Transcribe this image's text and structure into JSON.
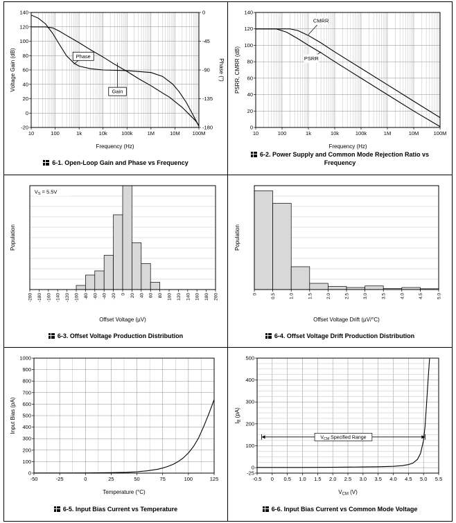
{
  "colors": {
    "curve": "#000000",
    "bar_fill": "#d8d8d8",
    "grid_major": "#8c8c8c",
    "grid_minor": "#c2c2c2",
    "border": "#000000"
  },
  "chart_data": [
    {
      "id": "6-1",
      "icon": "figure-icon",
      "caption": "6-1. Open-Loop Gain and Phase vs Frequency",
      "type": "line",
      "xscale": "log",
      "xlabel": "Frequency (Hz)",
      "ylabel": "Voltage Gain (dB)",
      "y2label": "Phase (°)",
      "xlim": [
        10,
        100000000
      ],
      "ylim": [
        -20,
        140
      ],
      "y2lim": [
        -180,
        0
      ],
      "ygrid": 20,
      "margins": {
        "l": 34,
        "r": 36,
        "t": 7,
        "b": 33
      },
      "xticks": [
        [
          10,
          "10"
        ],
        [
          100,
          "100"
        ],
        [
          1000,
          "1k"
        ],
        [
          10000,
          "10k"
        ],
        [
          100000,
          "100k"
        ],
        [
          1000000,
          "1M"
        ],
        [
          10000000,
          "10M"
        ],
        [
          100000000,
          "100M"
        ]
      ],
      "yticks": [
        [
          140,
          "140"
        ],
        [
          120,
          "120"
        ],
        [
          100,
          "100"
        ],
        [
          80,
          "80"
        ],
        [
          60,
          "60"
        ],
        [
          40,
          "40"
        ],
        [
          20,
          "20"
        ],
        [
          0,
          "0"
        ],
        [
          -20,
          "-20"
        ]
      ],
      "y2ticks": [
        [
          0,
          "0"
        ],
        [
          -45,
          "-45"
        ],
        [
          -90,
          "-90"
        ],
        [
          -135,
          "-135"
        ],
        [
          -180,
          "-180"
        ]
      ],
      "series": [
        {
          "name": "Gain",
          "points": [
            [
              10,
              120
            ],
            [
              40,
              120
            ],
            [
              80,
              118.5
            ],
            [
              150,
              114
            ],
            [
              300,
              108
            ],
            [
              1000,
              98
            ],
            [
              3000,
              88
            ],
            [
              10000,
              78
            ],
            [
              30000,
              68
            ],
            [
              100000,
              58
            ],
            [
              300000,
              48
            ],
            [
              1000000,
              38
            ],
            [
              3000000,
              28
            ],
            [
              6000000,
              22
            ],
            [
              10000000,
              16
            ],
            [
              20000000,
              8
            ],
            [
              40000000,
              -2
            ],
            [
              70000000,
              -10
            ],
            [
              100000000,
              -17
            ]
          ]
        },
        {
          "name": "Phase",
          "axis": "y2",
          "points": [
            [
              10,
              -4
            ],
            [
              20,
              -9
            ],
            [
              40,
              -18
            ],
            [
              80,
              -33
            ],
            [
              150,
              -50
            ],
            [
              300,
              -68
            ],
            [
              600,
              -79
            ],
            [
              1000,
              -84
            ],
            [
              3000,
              -88
            ],
            [
              10000,
              -90
            ],
            [
              100000,
              -91
            ],
            [
              1000000,
              -94
            ],
            [
              3000000,
              -100
            ],
            [
              8000000,
              -112
            ],
            [
              15000000,
              -124
            ],
            [
              30000000,
              -141
            ],
            [
              60000000,
              -162
            ],
            [
              100000000,
              -178
            ]
          ]
        }
      ],
      "annotations": [
        {
          "type": "label",
          "text": "Phase",
          "x": 1500,
          "y": 79,
          "boxed": true,
          "leader": [
            600,
            68
          ]
        },
        {
          "type": "label",
          "text": "Gain",
          "x": 40000,
          "y": 30,
          "boxed": true,
          "leader": [
            40000,
            70
          ]
        }
      ]
    },
    {
      "id": "6-2",
      "icon": "figure-icon",
      "caption": "6-2. Power Supply and Common Mode Rejection Ratio vs Frequency",
      "type": "line",
      "xscale": "log",
      "xlabel": "Frequency (Hz)",
      "ylabel": "PSRR, CMRR (dB)",
      "xlim": [
        10,
        100000000
      ],
      "ylim": [
        0,
        140
      ],
      "ygrid": 20,
      "margins": {
        "l": 34,
        "r": 12,
        "t": 7,
        "b": 33
      },
      "xticks": [
        [
          10,
          "10"
        ],
        [
          100,
          "100"
        ],
        [
          1000,
          "1k"
        ],
        [
          10000,
          "10k"
        ],
        [
          100000,
          "100k"
        ],
        [
          1000000,
          "1M"
        ],
        [
          10000000,
          "10M"
        ],
        [
          100000000,
          "100M"
        ]
      ],
      "yticks": [
        [
          140,
          "140"
        ],
        [
          120,
          "120"
        ],
        [
          100,
          "100"
        ],
        [
          80,
          "80"
        ],
        [
          60,
          "60"
        ],
        [
          40,
          "40"
        ],
        [
          20,
          "20"
        ],
        [
          0,
          "0"
        ]
      ],
      "series": [
        {
          "name": "CMRR",
          "points": [
            [
              10,
              120
            ],
            [
              200,
              120
            ],
            [
              400,
              118
            ],
            [
              1000,
              112
            ],
            [
              3000,
              103
            ],
            [
              10000,
              92
            ],
            [
              100000,
              72
            ],
            [
              1000000,
              52
            ],
            [
              10000000,
              32
            ],
            [
              100000000,
              12
            ]
          ]
        },
        {
          "name": "PSRR",
          "points": [
            [
              10,
              120
            ],
            [
              60,
              120
            ],
            [
              150,
              116
            ],
            [
              400,
              108
            ],
            [
              1000,
              100
            ],
            [
              3000,
              91
            ],
            [
              10000,
              80
            ],
            [
              100000,
              60
            ],
            [
              1000000,
              40
            ],
            [
              10000000,
              20
            ],
            [
              100000000,
              1
            ]
          ]
        }
      ],
      "annotations": [
        {
          "type": "label",
          "text": "CMRR",
          "x": 3000,
          "y": 130,
          "leader": [
            1000,
            113
          ]
        },
        {
          "type": "label",
          "text": "PSRR",
          "x": 1300,
          "y": 84,
          "leader": [
            3000,
            92
          ]
        }
      ]
    },
    {
      "id": "6-3",
      "icon": "figure-icon",
      "caption": "6-3. Offset Voltage Production Distribution",
      "type": "bar",
      "xlabel": "Offset Voltage (µV)",
      "ylabel": "Population",
      "y_units": "relative",
      "xlim": [
        -200,
        200
      ],
      "ylim": [
        0,
        1
      ],
      "bin_width": 20,
      "ygrid_div": 10,
      "xtick_rotate": true,
      "margins": {
        "l": 32,
        "r": 12,
        "t": 7,
        "b": 49
      },
      "xticks": [
        [
          -200,
          "-200"
        ],
        [
          -180,
          "-180"
        ],
        [
          -160,
          "-160"
        ],
        [
          -140,
          "-140"
        ],
        [
          -120,
          "-120"
        ],
        [
          -100,
          "-100"
        ],
        [
          -80,
          "-80"
        ],
        [
          -60,
          "-60"
        ],
        [
          -40,
          "-40"
        ],
        [
          -20,
          "-20"
        ],
        [
          0,
          "0"
        ],
        [
          20,
          "20"
        ],
        [
          40,
          "40"
        ],
        [
          60,
          "60"
        ],
        [
          80,
          "80"
        ],
        [
          100,
          "100"
        ],
        [
          120,
          "120"
        ],
        [
          140,
          "140"
        ],
        [
          160,
          "160"
        ],
        [
          180,
          "180"
        ],
        [
          200,
          "200"
        ]
      ],
      "bars": [
        [
          -100,
          0.04
        ],
        [
          -80,
          0.14
        ],
        [
          -60,
          0.18
        ],
        [
          -40,
          0.33
        ],
        [
          -20,
          0.72
        ],
        [
          0,
          1.0
        ],
        [
          20,
          0.45
        ],
        [
          40,
          0.25
        ],
        [
          60,
          0.07
        ]
      ],
      "annotations": [
        {
          "type": "label",
          "text": "V_{S} = 5.5V",
          "x": -190,
          "y": 0.94,
          "anchor": "start"
        }
      ]
    },
    {
      "id": "6-4",
      "icon": "figure-icon",
      "caption": "6-4. Offset Voltage Drift Production Distribution",
      "type": "bar",
      "xlabel": "Offset Voltage Drift (µV/°C)",
      "ylabel": "Population",
      "y_units": "relative",
      "xlim": [
        0,
        5
      ],
      "ylim": [
        0,
        1
      ],
      "bin_width": 0.5,
      "ygrid_div": 10,
      "xtick_rotate": true,
      "margins": {
        "l": 32,
        "r": 14,
        "t": 7,
        "b": 49
      },
      "xticks": [
        [
          0,
          "0"
        ],
        [
          0.5,
          "0.5"
        ],
        [
          1,
          "1.0"
        ],
        [
          1.5,
          "1.5"
        ],
        [
          2,
          "2.0"
        ],
        [
          2.5,
          "2.5"
        ],
        [
          3,
          "3.0"
        ],
        [
          3.5,
          "3.5"
        ],
        [
          4,
          "4.0"
        ],
        [
          4.5,
          "4.5"
        ],
        [
          5,
          "5.0"
        ]
      ],
      "bars": [
        [
          0,
          0.95
        ],
        [
          0.5,
          0.83
        ],
        [
          1,
          0.22
        ],
        [
          1.5,
          0.06
        ],
        [
          2,
          0.03
        ],
        [
          2.5,
          0.02
        ],
        [
          3,
          0.035
        ],
        [
          3.5,
          0.01
        ],
        [
          4,
          0.02
        ],
        [
          4.5,
          0.008
        ]
      ]
    },
    {
      "id": "6-5",
      "icon": "figure-icon",
      "caption": "6-5. Input Bias Current vs Temperature",
      "type": "line",
      "xlabel": "Temperature (°C)",
      "ylabel": "Input Bias (pA)",
      "xlim": [
        -50,
        125
      ],
      "ylim": [
        0,
        1000
      ],
      "xgrid": 25,
      "xgrid_minor": 12.5,
      "ygrid": 100,
      "margins": {
        "l": 38,
        "r": 14,
        "t": 7,
        "b": 33
      },
      "xticks": [
        [
          -50,
          "-50"
        ],
        [
          -25,
          "-25"
        ],
        [
          0,
          "0"
        ],
        [
          25,
          "25"
        ],
        [
          50,
          "50"
        ],
        [
          75,
          "75"
        ],
        [
          100,
          "100"
        ],
        [
          125,
          "125"
        ]
      ],
      "yticks": [
        [
          1000,
          "1000"
        ],
        [
          900,
          "900"
        ],
        [
          800,
          "800"
        ],
        [
          700,
          "700"
        ],
        [
          600,
          "600"
        ],
        [
          500,
          "500"
        ],
        [
          400,
          "400"
        ],
        [
          300,
          "300"
        ],
        [
          200,
          "200"
        ],
        [
          100,
          "100"
        ],
        [
          0,
          "0"
        ]
      ],
      "series": [
        {
          "name": "Input Bias",
          "points": [
            [
              -50,
              1
            ],
            [
              -25,
              1
            ],
            [
              0,
              2
            ],
            [
              25,
              4
            ],
            [
              40,
              7
            ],
            [
              50,
              12
            ],
            [
              60,
              20
            ],
            [
              70,
              34
            ],
            [
              75,
              44
            ],
            [
              80,
              58
            ],
            [
              85,
              76
            ],
            [
              90,
              100
            ],
            [
              95,
              132
            ],
            [
              100,
              175
            ],
            [
              105,
              232
            ],
            [
              110,
              308
            ],
            [
              115,
              408
            ],
            [
              120,
              520
            ],
            [
              125,
              640
            ]
          ]
        }
      ]
    },
    {
      "id": "6-6",
      "icon": "figure-icon",
      "caption": "6-6. Input Bias Current vs Common Mode Voltage",
      "type": "line",
      "xlabel": "V_{CM} (V)",
      "ylabel": "I_{B} (pA)",
      "xlim": [
        -0.5,
        5.5
      ],
      "ylim": [
        -25,
        500
      ],
      "xgrid": 0.5,
      "ygrid": 100,
      "ygrid_minor": 25,
      "margins": {
        "l": 36,
        "r": 14,
        "t": 7,
        "b": 33
      },
      "xticks": [
        [
          -0.5,
          "-0.5"
        ],
        [
          0,
          "0"
        ],
        [
          0.5,
          "0.5"
        ],
        [
          1,
          "1.0"
        ],
        [
          1.5,
          "1.5"
        ],
        [
          2,
          "2.0"
        ],
        [
          2.5,
          "2.5"
        ],
        [
          3,
          "3.0"
        ],
        [
          3.5,
          "3.5"
        ],
        [
          4,
          "4.0"
        ],
        [
          4.5,
          "4.5"
        ],
        [
          5,
          "5.0"
        ],
        [
          5.5,
          "5.5"
        ]
      ],
      "yticks": [
        [
          500,
          "500"
        ],
        [
          400,
          "400"
        ],
        [
          300,
          "300"
        ],
        [
          200,
          "200"
        ],
        [
          100,
          "100"
        ],
        [
          0,
          "0"
        ],
        [
          -25,
          "-25"
        ]
      ],
      "series": [
        {
          "name": "IB",
          "points": [
            [
              -0.5,
              1
            ],
            [
              0,
              1
            ],
            [
              1,
              1
            ],
            [
              2,
              2
            ],
            [
              3,
              3
            ],
            [
              3.5,
              4
            ],
            [
              4,
              6
            ],
            [
              4.3,
              9
            ],
            [
              4.5,
              14
            ],
            [
              4.65,
              21
            ],
            [
              4.8,
              38
            ],
            [
              4.9,
              65
            ],
            [
              5,
              125
            ],
            [
              5.05,
              190
            ],
            [
              5.1,
              290
            ],
            [
              5.15,
              400
            ],
            [
              5.2,
              500
            ],
            [
              5.22,
              540
            ]
          ]
        }
      ],
      "annotations": [
        {
          "type": "range_arrow",
          "x1": -0.35,
          "x2": 5.05,
          "y": 140,
          "label": "V_{CM} Specified Range"
        }
      ]
    }
  ]
}
